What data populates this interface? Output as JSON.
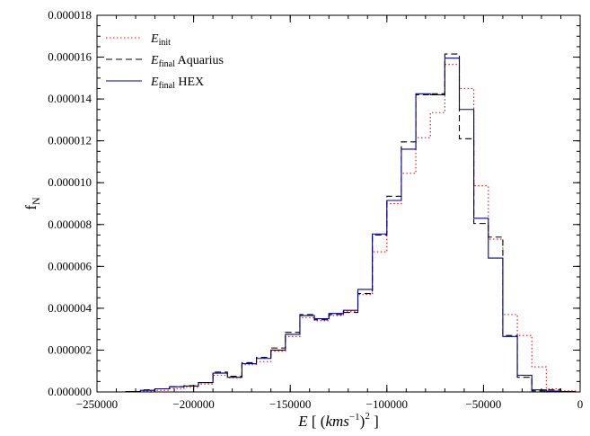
{
  "chart_data": {
    "type": "step-histogram",
    "xlabel": "E [ (kms⁻¹)² ]",
    "ylabel": "f_N",
    "xlim": [
      -250000,
      0
    ],
    "ylim": [
      0,
      1.8e-05
    ],
    "x_ticks": [
      -250000,
      -200000,
      -150000,
      -100000,
      -50000,
      0
    ],
    "x_tick_labels": [
      "−250000",
      "−200000",
      "−150000",
      "−100000",
      "−50000",
      "0"
    ],
    "y_ticks": [
      0,
      2e-06,
      4e-06,
      6e-06,
      8e-06,
      1e-05,
      1.2e-05,
      1.4e-05,
      1.6e-05,
      1.8e-05
    ],
    "y_tick_labels": [
      "0.000000",
      "0.000002",
      "0.000004",
      "0.000006",
      "0.000008",
      "0.000010",
      "0.000012",
      "0.000014",
      "0.000016",
      "0.000018"
    ],
    "legend_position": "top-left",
    "bin_edges": [
      -235000,
      -227500,
      -220000,
      -212500,
      -205000,
      -197500,
      -190000,
      -182500,
      -175000,
      -167500,
      -160000,
      -152500,
      -145000,
      -137500,
      -130000,
      -122500,
      -115000,
      -107500,
      -100000,
      -92500,
      -85000,
      -77500,
      -70000,
      -62500,
      -55000,
      -47500,
      -40000,
      -32500,
      -25000,
      -17500,
      -10000,
      -2500
    ],
    "series": [
      {
        "legend_main": "E",
        "legend_sub": "init",
        "legend_extra": "",
        "color": "#ff0000",
        "dash": "dotted",
        "values": [
          1e-08,
          4e-08,
          8e-08,
          1.6e-07,
          2.2e-07,
          3.8e-07,
          8e-07,
          6.8e-07,
          1.3e-06,
          1.45e-06,
          1.95e-06,
          2.65e-06,
          3.55e-06,
          3.4e-06,
          3.65e-06,
          3.85e-06,
          4.65e-06,
          6.7e-06,
          9e-06,
          1.045e-05,
          1.215e-05,
          1.335e-05,
          1.565e-05,
          1.45e-05,
          9.85e-06,
          7.3e-06,
          3.7e-06,
          2.7e-06,
          1.2e-06,
          1.5e-07,
          5e-08
        ]
      },
      {
        "legend_main": "E",
        "legend_sub": "final",
        "legend_extra": "Aquarius",
        "color": "#000000",
        "dash": "dashed",
        "values": [
          2e-08,
          1e-07,
          1.5e-07,
          2.5e-07,
          3e-07,
          4.5e-07,
          9.5e-07,
          7.5e-07,
          1.4e-06,
          1.65e-06,
          2.1e-06,
          2.85e-06,
          3.7e-06,
          3.45e-06,
          3.7e-06,
          3.8e-06,
          4.7e-06,
          7.5e-06,
          9.35e-06,
          1.195e-05,
          1.42e-05,
          1.425e-05,
          1.615e-05,
          1.21e-05,
          8.05e-06,
          7.4e-06,
          2.7e-06,
          7e-07,
          5e-08,
          1e-07,
          2e-08
        ]
      },
      {
        "legend_main": "E",
        "legend_sub": "final",
        "legend_extra": "HEX",
        "color": "#00008b",
        "dash": "solid",
        "values": [
          2e-08,
          8e-08,
          1.5e-07,
          2.5e-07,
          2.8e-07,
          4.5e-07,
          9e-07,
          7e-07,
          1.35e-06,
          1.6e-06,
          2e-06,
          2.75e-06,
          3.65e-06,
          3.5e-06,
          3.75e-06,
          3.9e-06,
          4.9e-06,
          7.55e-06,
          9.15e-06,
          1.16e-05,
          1.425e-05,
          1.42e-05,
          1.595e-05,
          1.35e-05,
          8.3e-06,
          6.4e-06,
          2.65e-06,
          8e-07,
          1e-07,
          4e-08,
          2e-08
        ]
      }
    ]
  }
}
